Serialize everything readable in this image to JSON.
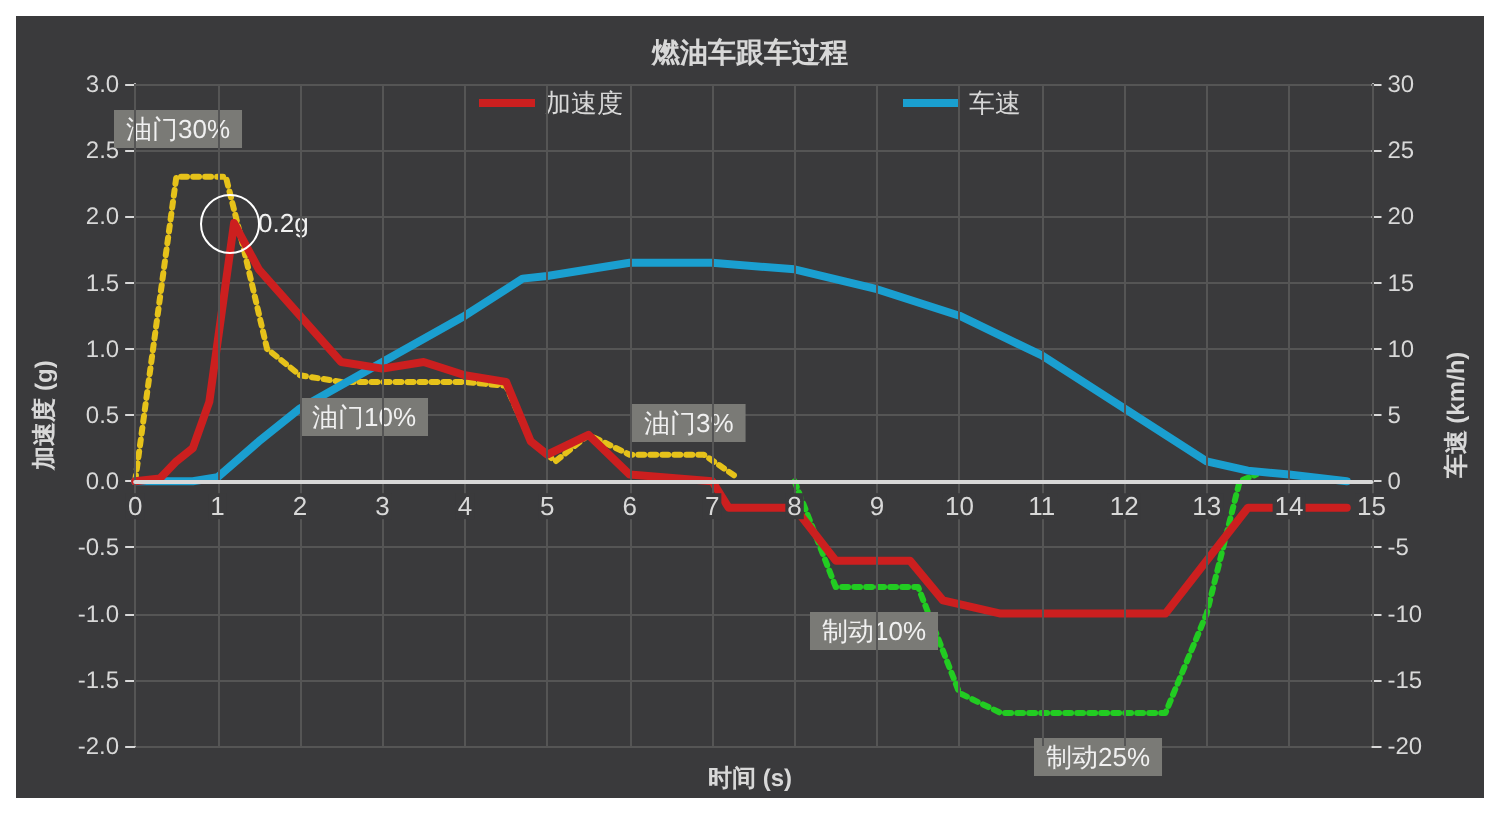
{
  "chart_data": {
    "type": "line",
    "title": "燃油车跟车过程",
    "xlabel": "时间 (s)",
    "ylabel": "加速度 (g)",
    "y2label": "车速 (km/h)",
    "xlim": [
      0,
      15
    ],
    "xticks": [
      0,
      1,
      2,
      3,
      4,
      5,
      6,
      7,
      8,
      9,
      10,
      11,
      12,
      13,
      14,
      15
    ],
    "ylim": [
      -2,
      3
    ],
    "yticks": [
      {
        "value": -2,
        "label": "-2.0"
      },
      -1.5,
      {
        "value": -1,
        "label": "-1.0"
      },
      -0.5,
      {
        "value": 0,
        "label": "0.0"
      },
      0.5,
      {
        "value": 1,
        "label": "1.0"
      },
      1.5,
      {
        "value": 2,
        "label": "2.0"
      },
      2.5,
      {
        "value": 3,
        "label": "3.0"
      }
    ],
    "y2lim": [
      -20,
      30
    ],
    "y2ticks": [
      -20,
      -15,
      -10,
      -5,
      0,
      5,
      10,
      15,
      20,
      25,
      30
    ],
    "grid": true,
    "legend": "top",
    "marker": "none",
    "series": [
      {
        "name": "加速度",
        "color": "#cc1f1f",
        "line_style": "solid",
        "x": [
          0,
          0.3,
          0.5,
          0.7,
          0.9,
          1.2,
          1.5,
          2.5,
          3,
          3.5,
          4,
          4.5,
          4.8,
          5,
          5.5,
          6,
          7,
          7.2,
          8,
          8.5,
          9.4,
          9.8,
          10.5,
          12.5,
          13.5,
          14.7
        ],
        "values": [
          0,
          0.02,
          0.15,
          0.25,
          0.6,
          1.95,
          1.6,
          0.9,
          0.85,
          0.9,
          0.8,
          0.75,
          0.3,
          0.2,
          0.35,
          0.05,
          0,
          -0.2,
          -0.2,
          -0.6,
          -0.6,
          -0.9,
          -1.0,
          -1.0,
          -0.2,
          -0.2
        ]
      },
      {
        "name": "车速",
        "color": "#1a9fd0",
        "axis": "y2",
        "line_style": "solid",
        "x": [
          0,
          0.7,
          1,
          1.5,
          2,
          3,
          4,
          4.7,
          5,
          6,
          7,
          8,
          9,
          10,
          11,
          12,
          12.5,
          13,
          13.5,
          14,
          14.7
        ],
        "values": [
          0,
          0,
          0.3,
          3,
          5.5,
          9,
          12.5,
          15.3,
          15.5,
          16.5,
          16.5,
          16,
          14.5,
          12.5,
          9.5,
          5.5,
          3.5,
          1.5,
          0.8,
          0.5,
          0
        ]
      },
      {
        "color": "#e6c21a",
        "line_style": "dotted",
        "x": [
          0,
          0.5,
          1.1,
          1.3,
          1.6,
          2,
          2.5,
          4,
          4.5,
          4.8,
          5.1,
          5.5,
          6,
          6.9,
          7.3
        ],
        "values": [
          0,
          2.3,
          2.3,
          1.8,
          1.0,
          0.8,
          0.75,
          0.75,
          0.72,
          0.3,
          0.15,
          0.35,
          0.2,
          0.2,
          0.03
        ]
      },
      {
        "color": "#22cc22",
        "line_style": "dotted",
        "x": [
          8,
          8.5,
          9.5,
          10,
          10.5,
          12.5,
          13,
          13.4,
          13.6
        ],
        "values": [
          0,
          -0.8,
          -0.8,
          -1.6,
          -1.75,
          -1.75,
          -1.0,
          0,
          0.05
        ]
      }
    ],
    "annotations": [
      "油门30%",
      "0.2g",
      "油门10%",
      "油门3%",
      "制动10%",
      "制动25%"
    ]
  }
}
